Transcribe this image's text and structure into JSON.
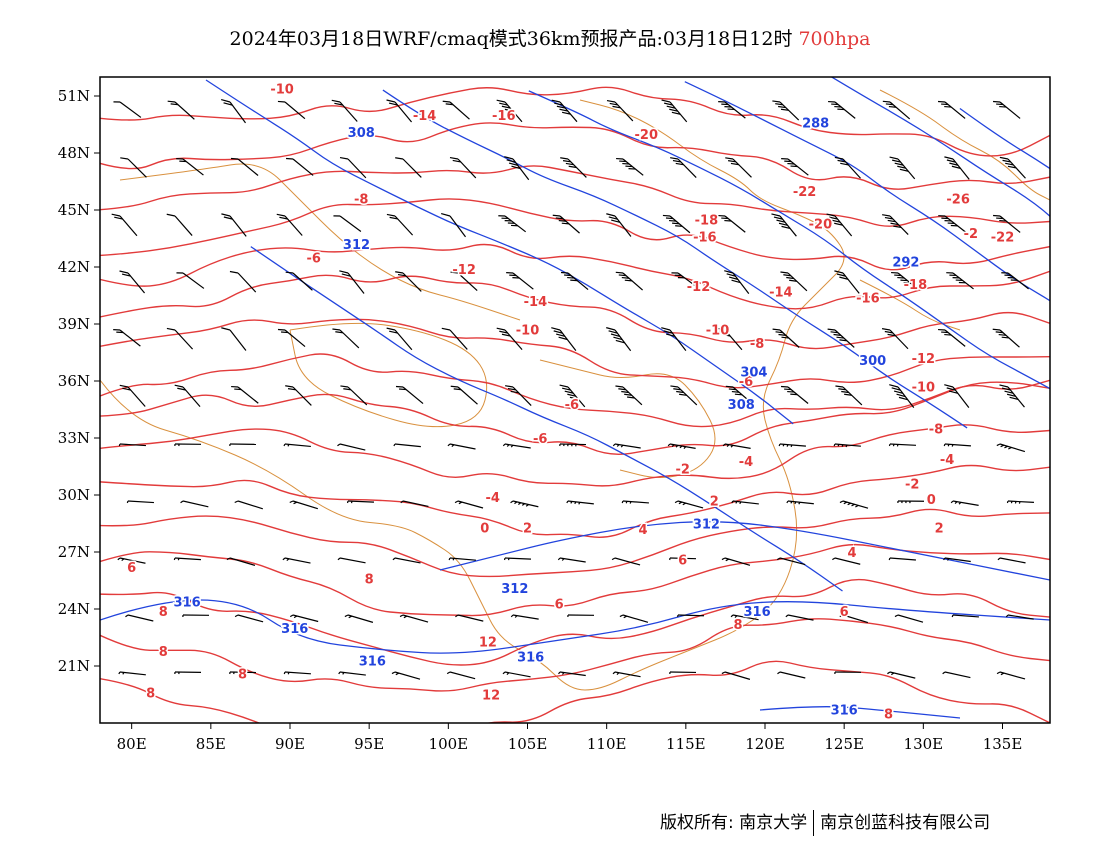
{
  "title": {
    "main": "2024年03月18日WRF/cmaq模式36km预报产品:03月18日12时",
    "level": "700hpa"
  },
  "colors": {
    "temperature": "#e23b3b",
    "geopotential": "#2244dd",
    "boundary": "#d9913f",
    "wind": "#000000"
  },
  "axes": {
    "lon_ticks": [
      "80E",
      "85E",
      "90E",
      "95E",
      "100E",
      "105E",
      "110E",
      "115E",
      "120E",
      "125E",
      "130E",
      "135E"
    ],
    "lat_ticks": [
      "51N",
      "48N",
      "45N",
      "42N",
      "39N",
      "36N",
      "33N",
      "30N",
      "27N",
      "24N",
      "21N"
    ]
  },
  "map_data": {
    "lon_range": [
      78,
      138
    ],
    "lat_range": [
      18,
      52
    ],
    "lon_values": [
      80,
      85,
      90,
      95,
      100,
      105,
      110,
      115,
      120,
      125,
      130,
      135
    ],
    "lat_values": [
      51,
      48,
      45,
      42,
      39,
      36,
      33,
      30,
      27,
      24,
      21
    ],
    "temp_labels": [
      {
        "text": "-10",
        "lon": 89.5,
        "lat": 51.4
      },
      {
        "text": "-14",
        "lon": 98.5,
        "lat": 50.0
      },
      {
        "text": "-16",
        "lon": 103.5,
        "lat": 50.0
      },
      {
        "text": "-20",
        "lon": 112.5,
        "lat": 49.0
      },
      {
        "text": "-8",
        "lon": 94.5,
        "lat": 45.6
      },
      {
        "text": "-6",
        "lon": 91.5,
        "lat": 42.5
      },
      {
        "text": "-12",
        "lon": 101.0,
        "lat": 41.9
      },
      {
        "text": "-14",
        "lon": 105.5,
        "lat": 40.2
      },
      {
        "text": "-10",
        "lon": 105.0,
        "lat": 38.7
      },
      {
        "text": "-22",
        "lon": 122.5,
        "lat": 46.0
      },
      {
        "text": "-20",
        "lon": 123.5,
        "lat": 44.3
      },
      {
        "text": "-18",
        "lon": 116.3,
        "lat": 44.5
      },
      {
        "text": "-16",
        "lon": 116.2,
        "lat": 43.6
      },
      {
        "text": "-12",
        "lon": 115.8,
        "lat": 41.0
      },
      {
        "text": "-10",
        "lon": 117.0,
        "lat": 38.7
      },
      {
        "text": "-8",
        "lon": 119.5,
        "lat": 38.0
      },
      {
        "text": "-6",
        "lon": 118.8,
        "lat": 36.0
      },
      {
        "text": "-14",
        "lon": 121.0,
        "lat": 40.7
      },
      {
        "text": "-16",
        "lon": 126.5,
        "lat": 40.4
      },
      {
        "text": "-18",
        "lon": 129.5,
        "lat": 41.1
      },
      {
        "text": "-12",
        "lon": 130.0,
        "lat": 37.2
      },
      {
        "text": "-10",
        "lon": 130.0,
        "lat": 35.7
      },
      {
        "text": "-8",
        "lon": 130.8,
        "lat": 33.5
      },
      {
        "text": "-6",
        "lon": 107.8,
        "lat": 34.8
      },
      {
        "text": "-6",
        "lon": 105.8,
        "lat": 33.0
      },
      {
        "text": "-4",
        "lon": 118.8,
        "lat": 31.8
      },
      {
        "text": "-4",
        "lon": 131.5,
        "lat": 31.9
      },
      {
        "text": "-2",
        "lon": 114.8,
        "lat": 31.4
      },
      {
        "text": "-2",
        "lon": 129.3,
        "lat": 30.6
      },
      {
        "text": "-4",
        "lon": 102.8,
        "lat": 29.9
      },
      {
        "text": "2",
        "lon": 116.8,
        "lat": 29.7
      },
      {
        "text": "0",
        "lon": 130.5,
        "lat": 29.8
      },
      {
        "text": "0",
        "lon": 102.3,
        "lat": 28.3
      },
      {
        "text": "2",
        "lon": 105.0,
        "lat": 28.3
      },
      {
        "text": "2",
        "lon": 131.0,
        "lat": 28.3
      },
      {
        "text": "4",
        "lon": 112.3,
        "lat": 28.2
      },
      {
        "text": "6",
        "lon": 114.8,
        "lat": 26.6
      },
      {
        "text": "4",
        "lon": 125.5,
        "lat": 27.0
      },
      {
        "text": "6",
        "lon": 80.0,
        "lat": 26.2
      },
      {
        "text": "8",
        "lon": 95.0,
        "lat": 25.6
      },
      {
        "text": "6",
        "lon": 107.0,
        "lat": 24.3
      },
      {
        "text": "6",
        "lon": 125.0,
        "lat": 23.9
      },
      {
        "text": "8",
        "lon": 82.0,
        "lat": 23.9
      },
      {
        "text": "8",
        "lon": 82.0,
        "lat": 21.8
      },
      {
        "text": "8",
        "lon": 87.0,
        "lat": 20.6
      },
      {
        "text": "8",
        "lon": 81.2,
        "lat": 19.6
      },
      {
        "text": "12",
        "lon": 102.5,
        "lat": 22.3
      },
      {
        "text": "12",
        "lon": 102.7,
        "lat": 19.5
      },
      {
        "text": "8",
        "lon": 118.3,
        "lat": 23.2
      },
      {
        "text": "8",
        "lon": 127.8,
        "lat": 18.5
      },
      {
        "text": "-26",
        "lon": 132.2,
        "lat": 45.6
      },
      {
        "text": "-2",
        "lon": 133.0,
        "lat": 43.8
      },
      {
        "text": "-22",
        "lon": 135.0,
        "lat": 43.6
      }
    ],
    "height_labels": [
      {
        "text": "308",
        "lon": 94.5,
        "lat": 49.1
      },
      {
        "text": "312",
        "lon": 94.2,
        "lat": 43.2
      },
      {
        "text": "288",
        "lon": 123.2,
        "lat": 49.6
      },
      {
        "text": "292",
        "lon": 128.9,
        "lat": 42.3
      },
      {
        "text": "300",
        "lon": 126.8,
        "lat": 37.1
      },
      {
        "text": "304",
        "lon": 119.3,
        "lat": 36.5
      },
      {
        "text": "308",
        "lon": 118.5,
        "lat": 34.8
      },
      {
        "text": "312",
        "lon": 116.3,
        "lat": 28.5
      },
      {
        "text": "312",
        "lon": 104.2,
        "lat": 25.1
      },
      {
        "text": "316",
        "lon": 83.5,
        "lat": 24.4
      },
      {
        "text": "316",
        "lon": 90.3,
        "lat": 23.0
      },
      {
        "text": "316",
        "lon": 95.2,
        "lat": 21.3
      },
      {
        "text": "316",
        "lon": 105.2,
        "lat": 21.5
      },
      {
        "text": "316",
        "lon": 119.5,
        "lat": 23.9
      },
      {
        "text": "316",
        "lon": 125.0,
        "lat": 18.7
      }
    ]
  },
  "footer": {
    "left": "版权所有: 南京大学",
    "right": "南京创蓝科技有限公司"
  }
}
